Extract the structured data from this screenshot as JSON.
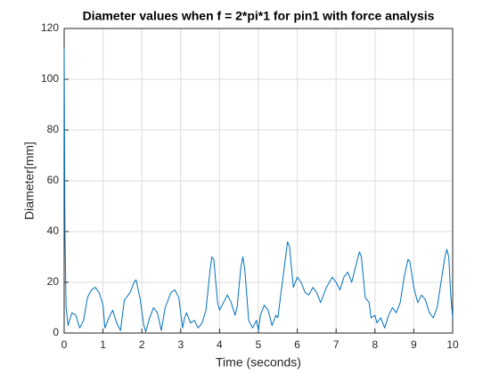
{
  "chart_data": {
    "type": "line",
    "title": "Diameter values when f = 2*pi*1 for pin1 with force analysis",
    "xlabel": "Time (seconds)",
    "ylabel": "Diameter[mm]",
    "xlim": [
      0,
      10
    ],
    "ylim": [
      0,
      120
    ],
    "xticks": [
      0,
      1,
      2,
      3,
      4,
      5,
      6,
      7,
      8,
      9,
      10
    ],
    "yticks": [
      0,
      20,
      40,
      60,
      80,
      100,
      120
    ],
    "grid": true,
    "x": [
      0,
      0.02,
      0.05,
      0.1,
      0.2,
      0.3,
      0.4,
      0.5,
      0.6,
      0.7,
      0.8,
      0.9,
      1.0,
      1.05,
      1.15,
      1.25,
      1.35,
      1.45,
      1.55,
      1.7,
      1.8,
      1.85,
      1.95,
      2.05,
      2.1,
      2.2,
      2.3,
      2.4,
      2.5,
      2.6,
      2.75,
      2.85,
      2.95,
      3.05,
      3.1,
      3.15,
      3.25,
      3.35,
      3.45,
      3.55,
      3.65,
      3.75,
      3.8,
      3.85,
      3.95,
      4.0,
      4.1,
      4.2,
      4.3,
      4.4,
      4.45,
      4.55,
      4.6,
      4.65,
      4.75,
      4.85,
      4.95,
      5.0,
      5.05,
      5.15,
      5.25,
      5.35,
      5.45,
      5.5,
      5.6,
      5.7,
      5.75,
      5.8,
      5.9,
      6.0,
      6.1,
      6.2,
      6.3,
      6.4,
      6.5,
      6.6,
      6.75,
      6.9,
      7.0,
      7.1,
      7.2,
      7.3,
      7.4,
      7.5,
      7.6,
      7.65,
      7.75,
      7.85,
      7.9,
      8.0,
      8.05,
      8.15,
      8.25,
      8.35,
      8.45,
      8.55,
      8.65,
      8.75,
      8.85,
      8.9,
      9.0,
      9.1,
      9.2,
      9.3,
      9.4,
      9.5,
      9.6,
      9.7,
      9.8,
      9.85,
      9.9,
      9.95,
      10.0
    ],
    "series": [
      {
        "color": "#0072bd",
        "values": [
          112,
          40,
          10,
          3,
          8,
          7,
          2,
          5,
          14,
          17,
          18,
          16,
          11,
          2,
          6,
          9,
          4,
          1,
          13,
          16,
          20,
          21,
          14,
          3,
          0.5,
          6,
          10,
          8,
          1,
          10,
          16,
          17,
          14,
          2,
          6,
          8,
          4,
          5,
          2,
          4,
          9,
          24,
          30,
          29,
          12,
          9,
          12,
          15,
          12,
          7,
          10,
          26,
          30,
          25,
          5,
          2,
          5,
          1,
          7,
          11,
          9,
          3,
          7,
          6,
          18,
          30,
          36,
          34,
          18,
          22,
          20,
          16,
          15,
          18,
          16,
          12,
          18,
          22,
          20,
          17,
          22,
          24,
          20,
          26,
          32,
          30,
          14,
          12,
          6,
          7,
          4,
          6,
          2,
          7,
          10,
          8,
          12,
          22,
          29,
          28,
          18,
          12,
          15,
          13,
          8,
          6,
          10,
          20,
          30,
          33,
          30,
          15,
          6
        ]
      }
    ]
  }
}
